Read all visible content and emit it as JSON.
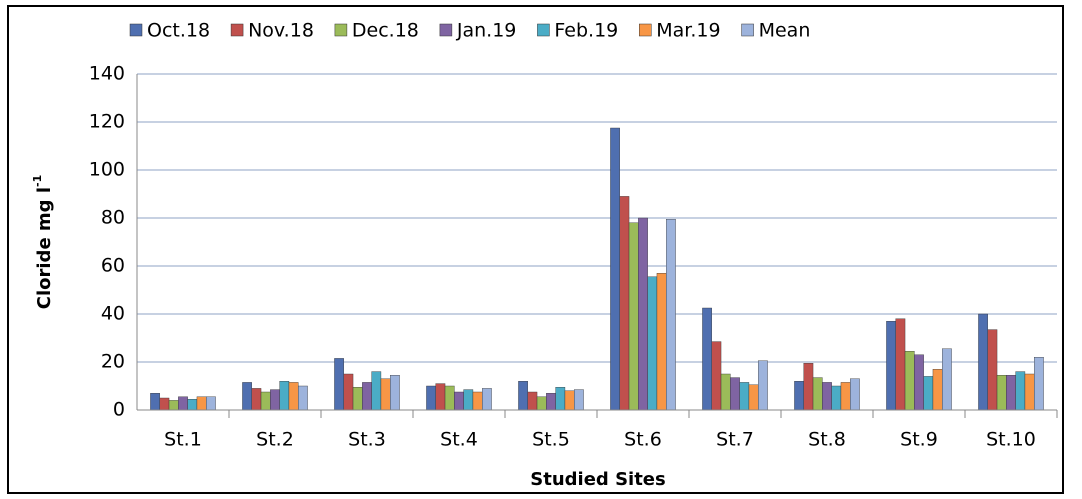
{
  "chart_data": {
    "type": "bar",
    "x_label": "Studied Sites",
    "y_label": "Cloride mg l",
    "y_label_superscript": "-1",
    "categories": [
      "St.1",
      "St.2",
      "St.3",
      "St.4",
      "St.5",
      "St.6",
      "St.7",
      "St.8",
      "St.9",
      "St.10"
    ],
    "series": [
      {
        "name": "Oct.18",
        "color": "#4f6fb0",
        "values": [
          7,
          11.5,
          21.5,
          10,
          12,
          117.5,
          42.5,
          12,
          37,
          40
        ]
      },
      {
        "name": "Nov.18",
        "color": "#c0504d",
        "values": [
          5,
          9,
          15,
          11,
          7.5,
          89,
          28.5,
          19.5,
          38,
          33.5
        ]
      },
      {
        "name": "Dec.18",
        "color": "#9bbb59",
        "values": [
          4,
          7.5,
          9.5,
          10,
          5.5,
          78,
          15,
          13.5,
          24.5,
          14.5
        ]
      },
      {
        "name": "Jan.19",
        "color": "#7f64a2",
        "values": [
          5.5,
          8.5,
          11.5,
          7.5,
          7,
          80,
          13.5,
          11.5,
          23,
          14.5
        ]
      },
      {
        "name": "Feb.19",
        "color": "#4bacc6",
        "values": [
          4.5,
          12,
          16,
          8.5,
          9.5,
          55.5,
          11.5,
          10,
          14,
          16
        ]
      },
      {
        "name": "Mar.19",
        "color": "#f79646",
        "values": [
          5.5,
          11.5,
          13,
          7.5,
          8,
          57,
          10.5,
          11.5,
          17,
          15
        ]
      },
      {
        "name": "Mean",
        "color": "#9db3dc",
        "values": [
          5.5,
          10,
          14.5,
          9,
          8.5,
          79.5,
          20.5,
          13,
          25.5,
          22
        ]
      }
    ],
    "ylim": [
      0,
      140
    ],
    "yticks": [
      0,
      20,
      40,
      60,
      80,
      100,
      120,
      140
    ],
    "grid": true
  }
}
